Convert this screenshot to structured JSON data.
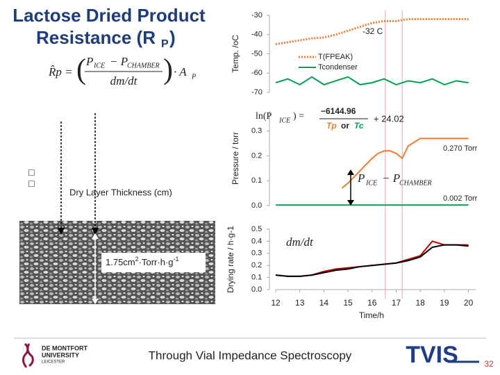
{
  "slide": {
    "title_line1": "Lactose Dried Product",
    "title_line2": "Resistance (R",
    "title_sub": "P",
    "title_end": ")",
    "eq_lhs": "R̂p =",
    "eq_num_p": "P",
    "eq_num_ice": "ICE",
    "eq_num_minus": "− P",
    "eq_num_chamber": "CHAMBER",
    "eq_den": "dm/dt",
    "eq_area": "· A",
    "eq_area_sub": "P",
    "boxes": "□□",
    "thickness_label": "Dry Layer Thickness (cm)",
    "resistance_value": "1.75cm",
    "resistance_sup": "2",
    "resistance_mid": "·Torr·h·g",
    "resistance_sup2": "-1",
    "footer_text": "Through Vial Impedance Spectroscopy",
    "logo_line1": "DE MONTFORT",
    "logo_line2": "UNIVERSITY",
    "logo_line3": "LEICESTER",
    "brand": "TVIS",
    "page_number": "32"
  },
  "chart_data": [
    {
      "type": "line",
      "ylabel": "Temp. /oC",
      "xlim": [
        12,
        20.3
      ],
      "ylim": [
        -70,
        -30
      ],
      "yticks": [
        -30,
        -40,
        -50,
        -60,
        -70
      ],
      "annotations": [
        "-32 C"
      ],
      "series": [
        {
          "name": "T(FPEAK)",
          "color": "#ed7d31",
          "style": "dotted",
          "x": [
            12,
            12.5,
            13,
            13.5,
            14,
            14.5,
            15,
            15.5,
            16,
            16.5,
            17,
            17.5,
            18,
            18.5,
            19,
            19.5,
            20
          ],
          "values": [
            -45,
            -44,
            -43,
            -42,
            -41.5,
            -40,
            -38,
            -36,
            -34,
            -33,
            -33,
            -32,
            -32,
            -32,
            -32,
            -32,
            -32
          ]
        },
        {
          "name": "Tcondenser",
          "color": "#00a050",
          "style": "solid",
          "x": [
            12,
            12.5,
            13,
            13.5,
            14,
            14.5,
            15,
            15.5,
            16,
            16.5,
            17,
            17.5,
            18,
            18.5,
            19,
            19.5,
            20
          ],
          "values": [
            -65,
            -63,
            -66,
            -62,
            -66,
            -64,
            -62,
            -66,
            -65,
            -63,
            -66,
            -64,
            -65,
            -63,
            -66,
            -64,
            -65
          ]
        }
      ]
    },
    {
      "type": "line",
      "ylabel": "Pressure / torr",
      "xlim": [
        12,
        20.3
      ],
      "ylim": [
        0,
        0.38
      ],
      "yticks": [
        {
          "value": 0.3,
          "label": "0.3"
        },
        {
          "value": 0.2,
          "label": "0.2"
        },
        {
          "value": 0.1,
          "label": "0.1"
        },
        {
          "value": 0,
          "label": "0.0"
        }
      ],
      "annotations": [
        "0.270 Torr",
        "0.002 Torr"
      ],
      "equation": [
        "ln(P",
        "ICE",
        ") =",
        "−6144.96",
        "Tp",
        "or",
        "Tc",
        "+ 24.02"
      ],
      "difference_label": [
        "P",
        "ICE",
        "− P",
        "CHAMBER"
      ],
      "series": [
        {
          "name": "P_ICE",
          "color": "#ed7d31",
          "style": "solid",
          "x": [
            14.75,
            15,
            15.5,
            16,
            16.25,
            16.5,
            16.75,
            17,
            17.25,
            17.5,
            18,
            19,
            20
          ],
          "values": [
            0.07,
            0.09,
            0.14,
            0.19,
            0.21,
            0.22,
            0.22,
            0.21,
            0.19,
            0.24,
            0.27,
            0.27,
            0.27
          ]
        },
        {
          "name": "P_CHAMBER",
          "color": "#00a050",
          "style": "solid",
          "x": [
            12,
            13,
            14,
            15,
            16,
            17,
            18,
            19,
            20
          ],
          "values": [
            0.002,
            0.002,
            0.002,
            0.002,
            0.002,
            0.002,
            0.002,
            0.002,
            0.002
          ]
        }
      ]
    },
    {
      "type": "line",
      "ylabel": "Drying rate / h·g-1",
      "xlabel": "Time/h",
      "xlim": [
        12,
        20.3
      ],
      "ylim": [
        0,
        0.5
      ],
      "yticks": [
        {
          "value": 0.5,
          "label": "0.5"
        },
        {
          "value": 0.4,
          "label": "0.4"
        },
        {
          "value": 0.3,
          "label": "0.3"
        },
        {
          "value": 0.2,
          "label": "0.2"
        },
        {
          "value": 0.1,
          "label": "0.1"
        },
        {
          "value": 0,
          "label": "0.0"
        }
      ],
      "xticks": [
        12,
        13,
        14,
        15,
        16,
        17,
        18,
        19,
        20
      ],
      "annotations": [
        "dm/dt"
      ],
      "series": [
        {
          "name": "measured",
          "color": "#c00000",
          "style": "solid",
          "x": [
            12,
            12.5,
            13,
            13.5,
            14,
            14.5,
            15,
            15.5,
            16,
            16.5,
            17,
            17.5,
            18,
            18.5,
            19,
            19.5,
            20
          ],
          "values": [
            0.12,
            0.11,
            0.11,
            0.12,
            0.15,
            0.17,
            0.18,
            0.19,
            0.2,
            0.21,
            0.22,
            0.25,
            0.28,
            0.4,
            0.37,
            0.37,
            0.37
          ]
        },
        {
          "name": "fitted",
          "color": "#000000",
          "style": "solid",
          "x": [
            12,
            12.5,
            13,
            13.5,
            14,
            14.5,
            15,
            15.5,
            16,
            16.5,
            17,
            17.5,
            18,
            18.5,
            19,
            19.5,
            20
          ],
          "values": [
            0.12,
            0.11,
            0.11,
            0.12,
            0.14,
            0.16,
            0.17,
            0.19,
            0.2,
            0.21,
            0.22,
            0.24,
            0.27,
            0.35,
            0.37,
            0.37,
            0.36
          ]
        }
      ]
    }
  ]
}
